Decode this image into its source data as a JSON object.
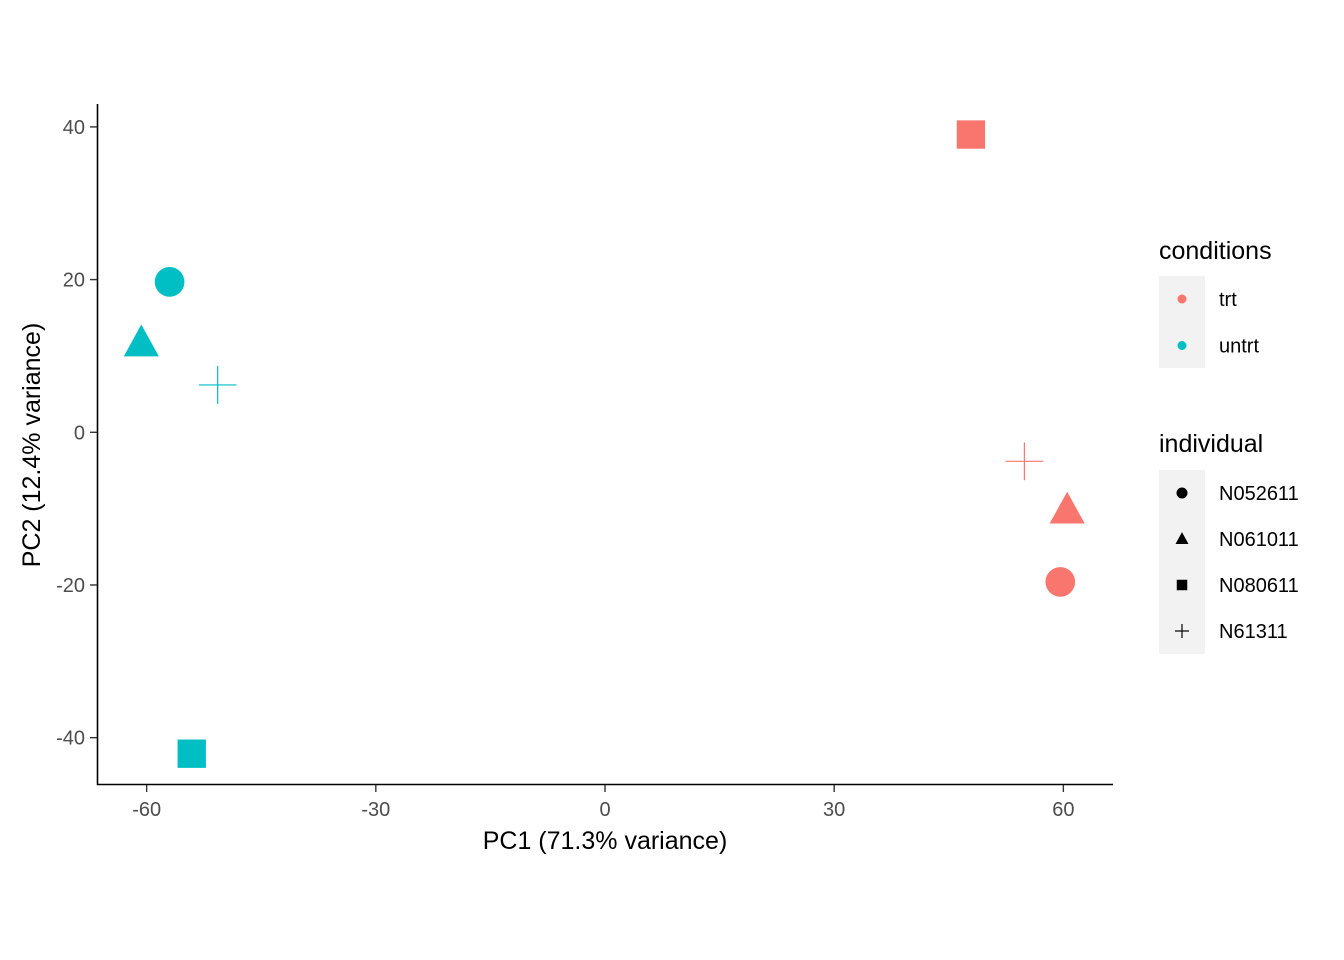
{
  "chart_data": {
    "type": "scatter",
    "title": "",
    "xlabel": "PC1 (71.3% variance)",
    "ylabel": "PC2 (12.4% variance)",
    "xlim": [
      -66.5,
      66.5
    ],
    "ylim": [
      -46.2,
      43.0
    ],
    "xticks": [
      -60,
      -30,
      0,
      30,
      60
    ],
    "yticks": [
      -40,
      -20,
      0,
      20,
      40
    ],
    "xtick_labels": [
      "-60",
      "-30",
      "0",
      "30",
      "60"
    ],
    "ytick_labels": [
      "-40",
      "-20",
      "0",
      "20",
      "40"
    ],
    "grid": false,
    "legend_position": "right",
    "color_legend": {
      "title": "conditions",
      "entries": [
        {
          "label": "trt",
          "color": "#F8766D"
        },
        {
          "label": "untrt",
          "color": "#00BFC4"
        }
      ]
    },
    "shape_legend": {
      "title": "individual",
      "entries": [
        {
          "label": "N052611",
          "shape": "circle"
        },
        {
          "label": "N061011",
          "shape": "triangle"
        },
        {
          "label": "N080611",
          "shape": "square"
        },
        {
          "label": "N61311",
          "shape": "plus"
        }
      ]
    },
    "points": [
      {
        "x": -57.0,
        "y": 19.7,
        "condition": "untrt",
        "individual": "N052611"
      },
      {
        "x": -60.7,
        "y": 11.7,
        "condition": "untrt",
        "individual": "N061011"
      },
      {
        "x": -54.1,
        "y": -42.1,
        "condition": "untrt",
        "individual": "N080611"
      },
      {
        "x": -50.7,
        "y": 6.2,
        "condition": "untrt",
        "individual": "N61311"
      },
      {
        "x": 59.6,
        "y": -19.6,
        "condition": "trt",
        "individual": "N052611"
      },
      {
        "x": 60.5,
        "y": -10.2,
        "condition": "trt",
        "individual": "N061011"
      },
      {
        "x": 47.9,
        "y": 39.0,
        "condition": "trt",
        "individual": "N080611"
      },
      {
        "x": 54.9,
        "y": -3.8,
        "condition": "trt",
        "individual": "N61311"
      }
    ]
  }
}
